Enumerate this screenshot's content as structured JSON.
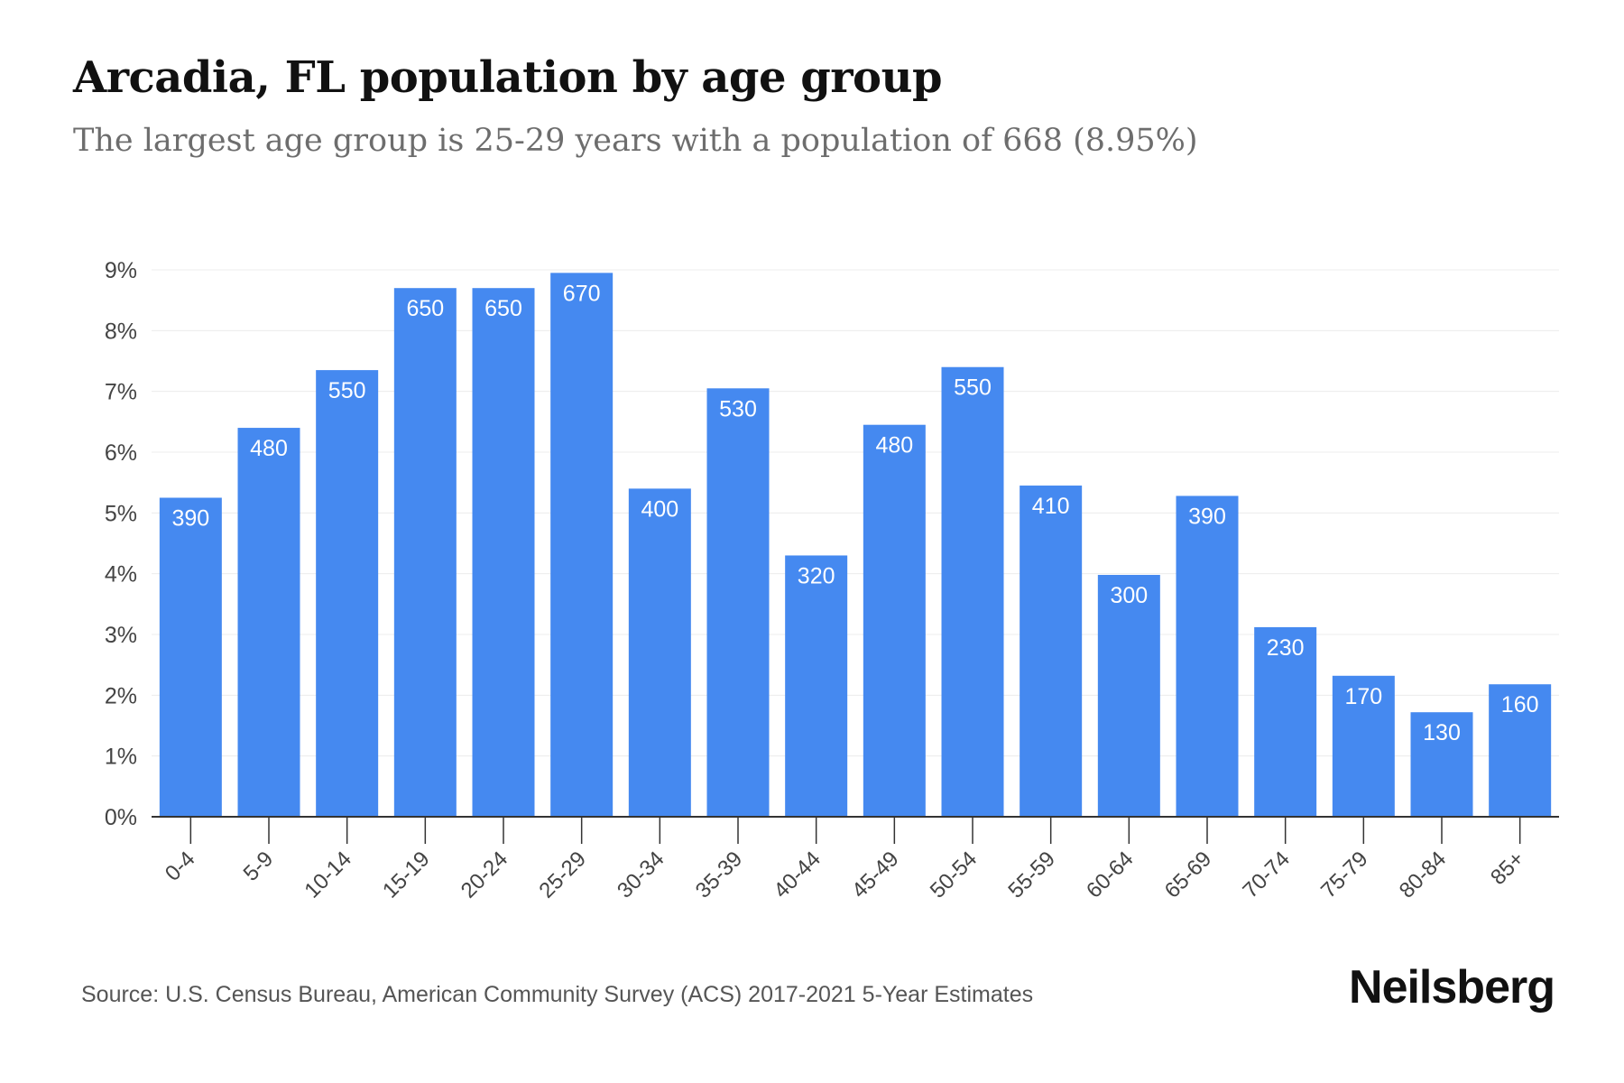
{
  "header": {
    "title": "Arcadia, FL population by age group",
    "subtitle": "The largest age group is 25-29 years with a population of 668 (8.95%)"
  },
  "footer": {
    "source": "Source: U.S. Census Bureau, American Community Survey (ACS) 2017-2021 5-Year Estimates",
    "brand": "Neilsberg"
  },
  "colors": {
    "bar": "#4589f0",
    "grid": "#ececec",
    "axis": "#333333",
    "bar_label": "#ffffff"
  },
  "chart_data": {
    "type": "bar",
    "title": "Arcadia, FL population by age group",
    "categories": [
      "0-4",
      "5-9",
      "10-14",
      "15-19",
      "20-24",
      "25-29",
      "30-34",
      "35-39",
      "40-44",
      "45-49",
      "50-54",
      "55-59",
      "60-64",
      "65-69",
      "70-74",
      "75-79",
      "80-84",
      "85+"
    ],
    "values": [
      5.25,
      6.4,
      7.35,
      8.7,
      8.7,
      8.95,
      5.4,
      7.05,
      4.3,
      6.45,
      7.4,
      5.45,
      3.98,
      5.28,
      3.12,
      2.32,
      1.72,
      2.18
    ],
    "data_labels": [
      "390",
      "480",
      "550",
      "650",
      "650",
      "670",
      "400",
      "530",
      "320",
      "480",
      "550",
      "410",
      "300",
      "390",
      "230",
      "170",
      "130",
      "160"
    ],
    "yticks": [
      "0%",
      "1%",
      "2%",
      "3%",
      "4%",
      "5%",
      "6%",
      "7%",
      "8%",
      "9%"
    ],
    "ylim": [
      0,
      9
    ],
    "xlabel": "",
    "ylabel": "",
    "grid": true,
    "legend": "none"
  }
}
